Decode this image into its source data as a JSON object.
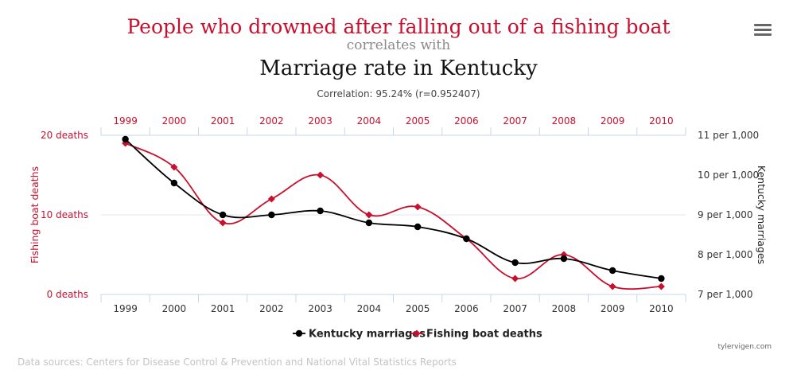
{
  "title": {
    "main": "People who drowned after falling out of a fishing boat",
    "connector": "correlates with",
    "secondary": "Marriage rate in Kentucky"
  },
  "correlation": "Correlation: 95.24% (r=0.952407)",
  "menu_icon": "hamburger-menu-icon",
  "colors": {
    "marriages": "#000000",
    "deaths": "#c8102e",
    "grid": "#e2e6ea",
    "axis": "#c9d6e8"
  },
  "chart_data": {
    "type": "line",
    "categories": [
      "1999",
      "2000",
      "2001",
      "2002",
      "2003",
      "2004",
      "2005",
      "2006",
      "2007",
      "2008",
      "2009",
      "2010"
    ],
    "series": [
      {
        "name": "Kentucky marriages",
        "axis": "right",
        "marker": "circle",
        "values": [
          10.9,
          9.8,
          9.0,
          9.0,
          9.1,
          8.8,
          8.7,
          8.4,
          7.8,
          7.9,
          7.6,
          7.4
        ]
      },
      {
        "name": "Fishing boat deaths",
        "axis": "left",
        "marker": "diamond",
        "values": [
          19,
          16,
          9,
          12,
          15,
          10,
          11,
          7,
          2,
          5,
          1,
          1
        ]
      }
    ],
    "left_axis": {
      "label": "Fishing boat deaths",
      "min": 0,
      "max": 20,
      "ticks": [
        {
          "value": 20,
          "label": "20 deaths"
        },
        {
          "value": 10,
          "label": "10 deaths"
        },
        {
          "value": 0,
          "label": "0 deaths"
        }
      ]
    },
    "right_axis": {
      "label": "Kentucky marriages",
      "min": 7,
      "max": 11,
      "ticks": [
        {
          "value": 11,
          "label": "11 per 1,000"
        },
        {
          "value": 10,
          "label": "10 per 1,000"
        },
        {
          "value": 9,
          "label": "9 per 1,000"
        },
        {
          "value": 8,
          "label": "8 per 1,000"
        },
        {
          "value": 7,
          "label": "7 per 1,000"
        }
      ]
    },
    "legend": [
      "Kentucky marriages",
      "Fishing boat deaths"
    ],
    "legend_position": "bottom-center"
  },
  "footer": {
    "sources": "Data sources: Centers for Disease Control & Prevention and National Vital Statistics Reports",
    "credit": "tylervigen.com"
  }
}
